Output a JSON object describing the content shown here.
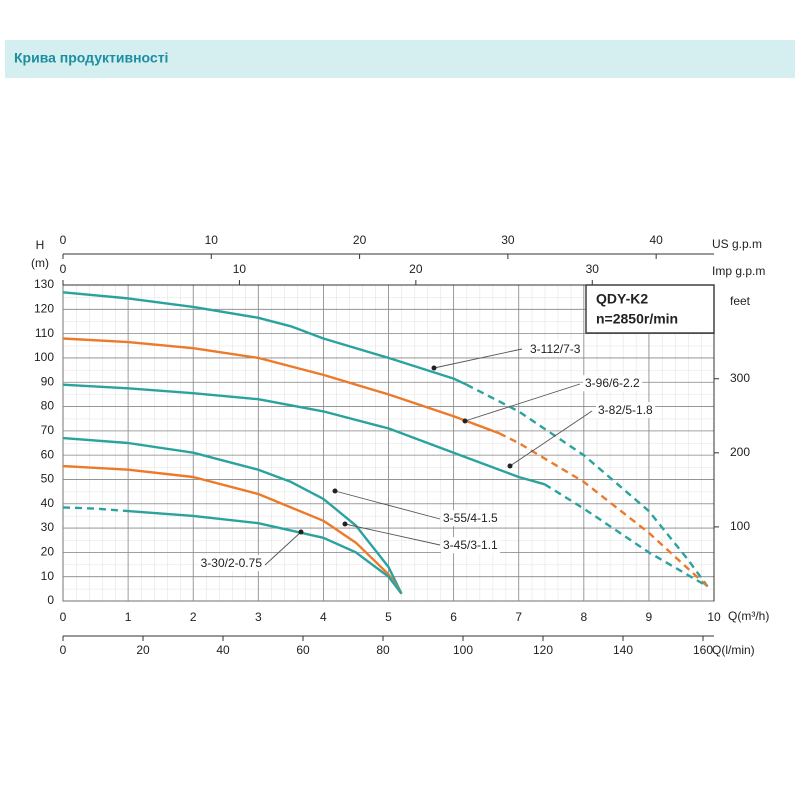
{
  "header": {
    "title": "Крива продуктивності"
  },
  "chart_data": {
    "type": "line",
    "y_label": "H",
    "y_unit": "(m)",
    "ylim": [
      0,
      130
    ],
    "yticks": [
      0,
      10,
      20,
      30,
      40,
      50,
      60,
      70,
      80,
      90,
      100,
      110,
      120,
      130
    ],
    "x_label": "Q(m³/h)",
    "xlim": [
      0,
      10
    ],
    "xticks": [
      0,
      1,
      2,
      3,
      4,
      5,
      6,
      7,
      8,
      9,
      10
    ],
    "x_lmin_axis": {
      "label": "Q(l/min)",
      "xlim": [
        0,
        162.75
      ],
      "xticks": [
        0,
        20,
        40,
        60,
        80,
        100,
        120,
        140,
        160
      ]
    },
    "x_us_gpm_axis": {
      "label": "US g.p.m",
      "xlim": [
        0,
        43.9
      ],
      "xticks": [
        0,
        10,
        20,
        30,
        40
      ]
    },
    "x_imp_gpm_axis": {
      "label": "Imp g.p.m",
      "xlim": [
        0,
        36.9
      ],
      "xticks": [
        0,
        10,
        20,
        30
      ]
    },
    "y2_label": "feet",
    "y2lim": [
      0,
      426.5
    ],
    "y2ticks": [
      100,
      200,
      300
    ],
    "grid": true,
    "annotations": [
      "QDY-K2",
      "n=2850r/min"
    ],
    "series": [
      {
        "name": "3-112/7-3",
        "color": "#2aa39e",
        "dashed": [
          6.2,
          9.9
        ],
        "x": [
          0,
          1,
          2,
          3,
          3.5,
          4,
          5,
          6,
          6.2,
          7,
          8,
          9,
          9.6,
          9.9
        ],
        "values": [
          127,
          124.5,
          121,
          116.5,
          113,
          108,
          100,
          91.5,
          89,
          78,
          60,
          37,
          17,
          6
        ]
      },
      {
        "name": "3-96/6-2.2",
        "color": "#ec7a2b",
        "dashed": [
          6.7,
          9.9
        ],
        "x": [
          0,
          1,
          2,
          3,
          4,
          5,
          6,
          6.7,
          7,
          8,
          9,
          9.9
        ],
        "values": [
          108,
          106.5,
          104,
          100,
          93,
          85,
          76,
          69,
          65,
          49,
          28,
          6
        ]
      },
      {
        "name": "3-82/5-1.8",
        "color": "#2aa39e",
        "dashed": [
          7.4,
          9.9
        ],
        "x": [
          0,
          1,
          2,
          3,
          4,
          5,
          6,
          7,
          7.4,
          8,
          9,
          9.9
        ],
        "values": [
          89,
          87.5,
          85.5,
          83,
          78,
          71,
          61,
          51,
          48,
          38,
          20,
          6
        ]
      },
      {
        "name": "3-55/4-1.5",
        "color": "#2aa39e",
        "x": [
          0,
          1,
          2,
          3,
          3.5,
          4,
          4.5,
          5,
          5.2
        ],
        "values": [
          67,
          65,
          61,
          54,
          49,
          42,
          31,
          14,
          3
        ]
      },
      {
        "name": "3-45/3-1.1",
        "color": "#ec7a2b",
        "x": [
          0,
          1,
          2,
          3,
          4,
          4.5,
          5,
          5.2
        ],
        "values": [
          55.5,
          54,
          51,
          44,
          33,
          24,
          11,
          3
        ]
      },
      {
        "name": "3-30/2-0.75",
        "color": "#2aa39e",
        "dashed": [
          0,
          1
        ],
        "x": [
          0,
          0.5,
          1,
          2,
          3,
          4,
          4.5,
          5,
          5.2
        ],
        "values": [
          38.5,
          38,
          37,
          35,
          32,
          26,
          20,
          10,
          3
        ]
      }
    ]
  }
}
